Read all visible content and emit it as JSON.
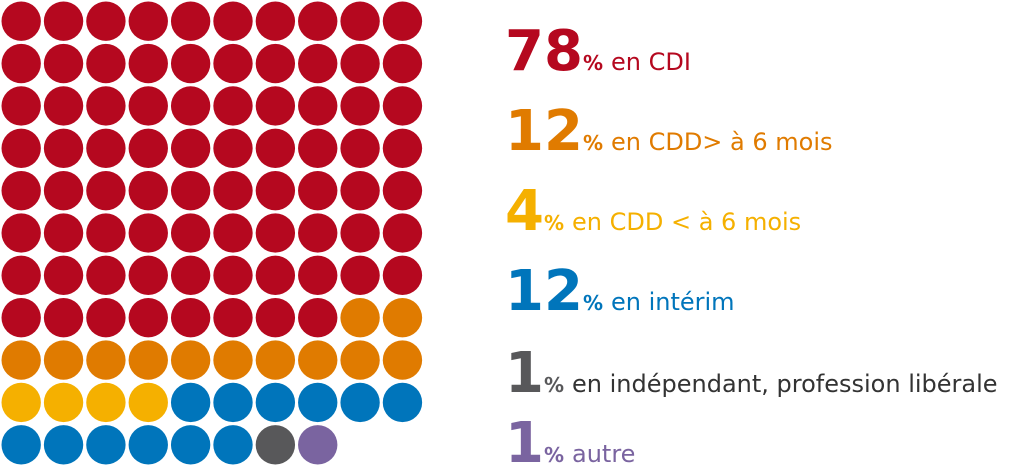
{
  "chart_data": {
    "type": "waffle",
    "unit": "%",
    "series": [
      {
        "name": "en CDI",
        "color": "#b5081f",
        "value": 78
      },
      {
        "name": "en CDD> à 6 mois",
        "color": "#e07b00",
        "value": 12
      },
      {
        "name": "en CDD < à 6 mois",
        "color": "#f5b000",
        "value": 4
      },
      {
        "name": "en intérim",
        "color": "#0075bb",
        "value": 12
      },
      {
        "name": "en indépendant, profession libérale",
        "color": "#58585a",
        "value": 1
      },
      {
        "name": "autre",
        "color": "#7a64a0",
        "value": 1
      }
    ]
  }
}
